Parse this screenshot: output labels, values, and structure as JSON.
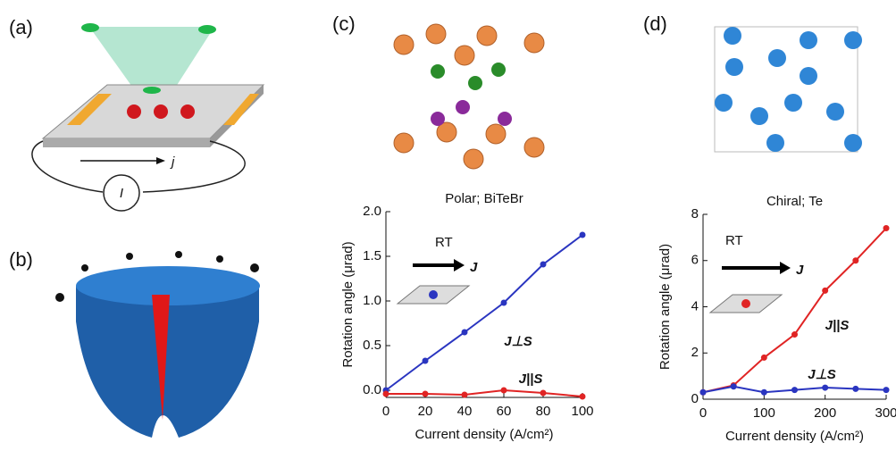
{
  "panel_labels": [
    "(a)",
    "(b)",
    "(c)",
    "(d)"
  ],
  "panel_a": {
    "current": "j",
    "meter": "I"
  },
  "chart_data": [
    {
      "type": "line",
      "title": "Polar; BiTeBr",
      "x_label": "Current density (A/cm²)",
      "y_label": "Rotation angle (μrad)",
      "annotations": [
        "RT",
        "J"
      ],
      "x": [
        0,
        20,
        40,
        60,
        80,
        100
      ],
      "series": [
        {
          "name": "J⊥S",
          "color": "#2a35c0",
          "values": [
            0,
            0.33,
            0.65,
            0.98,
            1.41,
            1.74
          ]
        },
        {
          "name": "J||S",
          "color": "#e02424",
          "values": [
            -0.04,
            -0.04,
            -0.05,
            0.0,
            -0.03,
            -0.07
          ]
        }
      ],
      "xlim": [
        0,
        100
      ],
      "xticks": [
        0,
        20,
        40,
        60,
        80,
        100
      ],
      "ylim": [
        -0.08,
        2.0
      ],
      "yticks": [
        {
          "value": 0,
          "label": "0.0"
        },
        {
          "value": 0.5,
          "label": "0.5"
        },
        {
          "value": 1,
          "label": "1.0"
        },
        {
          "value": 1.5,
          "label": "1.5"
        },
        {
          "value": 2,
          "label": "2.0"
        }
      ],
      "grid": false
    },
    {
      "type": "line",
      "title": "Chiral; Te",
      "x_label": "Current density (A/cm²)",
      "y_label": "Rotation angle (μrad)",
      "annotations": [
        "RT",
        "J"
      ],
      "x": [
        0,
        50,
        100,
        150,
        200,
        250,
        300
      ],
      "series": [
        {
          "name": "J||S",
          "color": "#e02424",
          "values": [
            0.3,
            0.6,
            1.8,
            2.8,
            4.7,
            6.0,
            7.4
          ]
        },
        {
          "name": "J⊥S",
          "color": "#2a35c0",
          "values": [
            0.3,
            0.55,
            0.3,
            0.4,
            0.5,
            0.45,
            0.4
          ]
        }
      ],
      "xlim": [
        0,
        300
      ],
      "xticks": [
        0,
        100,
        200,
        300
      ],
      "ylim": [
        0,
        8
      ],
      "yticks": [
        0,
        2,
        4,
        6,
        8
      ],
      "grid": false
    }
  ]
}
